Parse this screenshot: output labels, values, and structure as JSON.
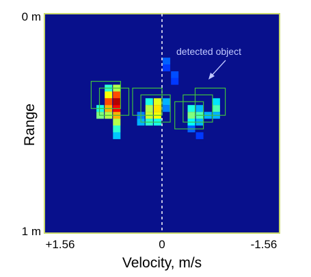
{
  "chart_data": {
    "type": "heatmap",
    "title": "",
    "xlabel": "Velocity, m/s",
    "ylabel": "Range",
    "x_tick_labels": [
      "+1.56",
      "0",
      "-1.56"
    ],
    "y_tick_labels": [
      "0 m",
      "1 m"
    ],
    "xlim": [
      1.56,
      -1.56
    ],
    "ylim": [
      0,
      1
    ],
    "zero_velocity_line": true,
    "background_color": "#08108c",
    "frame_color": "#c8d86c",
    "box_color": "#3fbf3f",
    "annotation": "detected object",
    "colormap": "jet",
    "cells": [
      {
        "v": 0.71,
        "r": 0.339,
        "i": 0.42
      },
      {
        "v": 0.6,
        "r": 0.339,
        "i": 0.55
      },
      {
        "v": 0.71,
        "r": 0.37,
        "i": 0.62
      },
      {
        "v": 0.6,
        "r": 0.37,
        "i": 0.8
      },
      {
        "v": 0.71,
        "r": 0.401,
        "i": 0.8
      },
      {
        "v": 0.6,
        "r": 0.401,
        "i": 0.95
      },
      {
        "v": 0.71,
        "r": 0.432,
        "i": 0.7
      },
      {
        "v": 0.6,
        "r": 0.432,
        "i": 0.88
      },
      {
        "v": 0.71,
        "r": 0.463,
        "i": 0.55
      },
      {
        "v": 0.6,
        "r": 0.463,
        "i": 0.7
      },
      {
        "v": 0.6,
        "r": 0.494,
        "i": 0.55
      },
      {
        "v": 0.6,
        "r": 0.525,
        "i": 0.42
      },
      {
        "v": 0.6,
        "r": 0.556,
        "i": 0.32
      },
      {
        "v": 0.82,
        "r": 0.432,
        "i": 0.4
      },
      {
        "v": 0.82,
        "r": 0.463,
        "i": 0.5
      },
      {
        "v": 0.17,
        "r": 0.401,
        "i": 0.4
      },
      {
        "v": 0.06,
        "r": 0.401,
        "i": 0.6
      },
      {
        "v": 0.17,
        "r": 0.432,
        "i": 0.55
      },
      {
        "v": 0.06,
        "r": 0.432,
        "i": 0.65
      },
      {
        "v": 0.17,
        "r": 0.463,
        "i": 0.58
      },
      {
        "v": 0.06,
        "r": 0.463,
        "i": 0.62
      },
      {
        "v": 0.17,
        "r": 0.494,
        "i": 0.42
      },
      {
        "v": 0.06,
        "r": 0.494,
        "i": 0.4
      },
      {
        "v": 0.28,
        "r": 0.463,
        "i": 0.25
      },
      {
        "v": 0.28,
        "r": 0.494,
        "i": 0.3
      },
      {
        "v": -0.06,
        "r": 0.401,
        "i": 0.3
      },
      {
        "v": -0.06,
        "r": 0.432,
        "i": 0.25
      },
      {
        "v": -0.39,
        "r": 0.432,
        "i": 0.4
      },
      {
        "v": -0.5,
        "r": 0.432,
        "i": 0.3
      },
      {
        "v": -0.39,
        "r": 0.463,
        "i": 0.5
      },
      {
        "v": -0.5,
        "r": 0.463,
        "i": 0.45
      },
      {
        "v": -0.39,
        "r": 0.494,
        "i": 0.38
      },
      {
        "v": -0.5,
        "r": 0.494,
        "i": 0.3
      },
      {
        "v": -0.39,
        "r": 0.525,
        "i": 0.22
      },
      {
        "v": -0.72,
        "r": 0.401,
        "i": 0.35
      },
      {
        "v": -0.72,
        "r": 0.432,
        "i": 0.45
      },
      {
        "v": -0.72,
        "r": 0.463,
        "i": 0.3
      },
      {
        "v": -0.61,
        "r": 0.463,
        "i": 0.3
      },
      {
        "v": -0.06,
        "r": 0.216,
        "i": 0.22
      },
      {
        "v": -0.06,
        "r": 0.247,
        "i": 0.18
      },
      {
        "v": -0.17,
        "r": 0.278,
        "i": 0.2
      },
      {
        "v": -0.17,
        "r": 0.308,
        "i": 0.18
      },
      {
        "v": -0.5,
        "r": 0.556,
        "i": 0.18
      }
    ],
    "boxes": [
      {
        "v0": 0.94,
        "v1": 0.55,
        "r0": 0.308,
        "r1": 0.432
      },
      {
        "v0": 0.83,
        "v1": 0.44,
        "r0": 0.339,
        "r1": 0.463
      },
      {
        "v0": 0.39,
        "v1": 0.0,
        "r0": 0.339,
        "r1": 0.463
      },
      {
        "v0": 0.28,
        "v1": -0.11,
        "r0": 0.37,
        "r1": 0.494
      },
      {
        "v0": -0.17,
        "v1": -0.55,
        "r0": 0.401,
        "r1": 0.525
      },
      {
        "v0": -0.28,
        "v1": -0.67,
        "r0": 0.37,
        "r1": 0.494
      },
      {
        "v0": -0.44,
        "v1": -0.84,
        "r0": 0.339,
        "r1": 0.463
      }
    ]
  }
}
